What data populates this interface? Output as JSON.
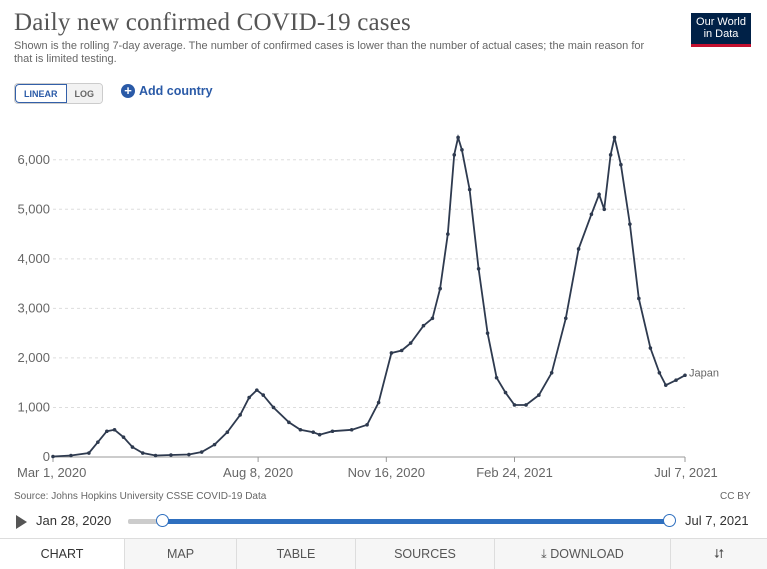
{
  "header": {
    "title": "Daily new confirmed COVID-19 cases",
    "subtitle": "Shown is the rolling 7-day average. The number of confirmed cases is lower than the number of actual cases; the main reason for that is limited testing.",
    "logo_line1": "Our World",
    "logo_line2": "in Data"
  },
  "controls": {
    "linear_label": "LINEAR",
    "log_label": "LOG",
    "add_country_label": "Add country",
    "add_icon": "plus-circle-icon"
  },
  "footer": {
    "source": "Source: Johns Hopkins University CSSE COVID-19 Data",
    "license": "CC BY"
  },
  "timeline": {
    "start_label": "Jan 28, 2020",
    "end_label": "Jul 7, 2021",
    "start_position": 0.02,
    "end_position": 1.0
  },
  "tabs": [
    {
      "label": "CHART",
      "active": true
    },
    {
      "label": "MAP"
    },
    {
      "label": "TABLE"
    },
    {
      "label": "SOURCES"
    },
    {
      "label": "DOWNLOAD",
      "icon": "download-icon"
    },
    {
      "label": "",
      "icon": "share-icon"
    }
  ],
  "colors": {
    "line": "#2e3a4f",
    "accent": "#2a5aa7",
    "logo_bg": "#002147",
    "logo_bar": "#c3102f"
  },
  "chart_data": {
    "type": "line",
    "title": "Daily new confirmed COVID-19 cases",
    "x_type": "date",
    "x_ticks": [
      "Mar 1, 2020",
      "Aug 8, 2020",
      "Nov 16, 2020",
      "Feb 24, 2021",
      "Jul 7, 2021"
    ],
    "ylim": [
      0,
      6500
    ],
    "y_ticks": [
      0,
      1000,
      2000,
      3000,
      4000,
      5000,
      6000
    ],
    "y_tick_labels": [
      "0",
      "1,000",
      "2,000",
      "3,000",
      "4,000",
      "5,000",
      "6,000"
    ],
    "grid": true,
    "series": [
      {
        "name": "Japan",
        "points": [
          [
            "2020-03-01",
            10
          ],
          [
            "2020-03-15",
            30
          ],
          [
            "2020-03-29",
            80
          ],
          [
            "2020-04-05",
            300
          ],
          [
            "2020-04-12",
            520
          ],
          [
            "2020-04-18",
            550
          ],
          [
            "2020-04-25",
            400
          ],
          [
            "2020-05-02",
            200
          ],
          [
            "2020-05-10",
            80
          ],
          [
            "2020-05-20",
            30
          ],
          [
            "2020-06-01",
            40
          ],
          [
            "2020-06-15",
            50
          ],
          [
            "2020-06-25",
            100
          ],
          [
            "2020-07-05",
            250
          ],
          [
            "2020-07-15",
            500
          ],
          [
            "2020-07-25",
            850
          ],
          [
            "2020-08-01",
            1200
          ],
          [
            "2020-08-07",
            1350
          ],
          [
            "2020-08-12",
            1250
          ],
          [
            "2020-08-20",
            1000
          ],
          [
            "2020-09-01",
            700
          ],
          [
            "2020-09-10",
            550
          ],
          [
            "2020-09-20",
            500
          ],
          [
            "2020-09-25",
            450
          ],
          [
            "2020-10-05",
            520
          ],
          [
            "2020-10-20",
            550
          ],
          [
            "2020-11-01",
            650
          ],
          [
            "2020-11-10",
            1100
          ],
          [
            "2020-11-20",
            2100
          ],
          [
            "2020-11-28",
            2150
          ],
          [
            "2020-12-05",
            2300
          ],
          [
            "2020-12-15",
            2650
          ],
          [
            "2020-12-22",
            2800
          ],
          [
            "2020-12-28",
            3400
          ],
          [
            "2021-01-03",
            4500
          ],
          [
            "2021-01-08",
            6100
          ],
          [
            "2021-01-11",
            6450
          ],
          [
            "2021-01-14",
            6200
          ],
          [
            "2021-01-20",
            5400
          ],
          [
            "2021-01-27",
            3800
          ],
          [
            "2021-02-03",
            2500
          ],
          [
            "2021-02-10",
            1600
          ],
          [
            "2021-02-17",
            1300
          ],
          [
            "2021-02-24",
            1050
          ],
          [
            "2021-03-05",
            1050
          ],
          [
            "2021-03-15",
            1250
          ],
          [
            "2021-03-25",
            1700
          ],
          [
            "2021-04-05",
            2800
          ],
          [
            "2021-04-15",
            4200
          ],
          [
            "2021-04-25",
            4900
          ],
          [
            "2021-05-01",
            5300
          ],
          [
            "2021-05-05",
            5000
          ],
          [
            "2021-05-10",
            6100
          ],
          [
            "2021-05-13",
            6450
          ],
          [
            "2021-05-18",
            5900
          ],
          [
            "2021-05-25",
            4700
          ],
          [
            "2021-06-01",
            3200
          ],
          [
            "2021-06-10",
            2200
          ],
          [
            "2021-06-17",
            1700
          ],
          [
            "2021-06-22",
            1450
          ],
          [
            "2021-06-30",
            1550
          ],
          [
            "2021-07-07",
            1650
          ]
        ]
      }
    ]
  }
}
